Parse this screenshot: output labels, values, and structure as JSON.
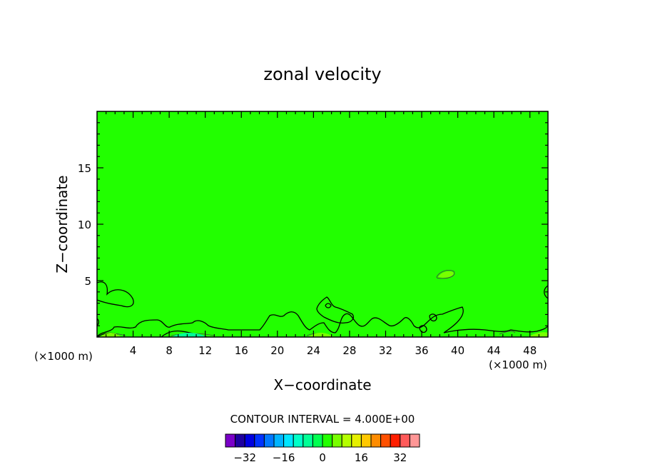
{
  "chart_data": {
    "type": "heatmap",
    "title": "zonal velocity",
    "xlabel": "X−coordinate",
    "ylabel": "Z−coordinate",
    "x_unit": "(×1000 m)",
    "x_unit_right": "(×1000 m)",
    "xlim": [
      0,
      50
    ],
    "ylim": [
      0,
      20
    ],
    "x_ticks": [
      4,
      8,
      12,
      16,
      20,
      24,
      28,
      32,
      36,
      40,
      44,
      48
    ],
    "y_ticks": [
      5,
      10,
      15
    ],
    "background_color": "#22ff00",
    "contour_interval_text": "CONTOUR INTERVAL = 4.000E+00",
    "colorbar": {
      "colors": [
        "#7a00c8",
        "#1e00a0",
        "#0000e0",
        "#0032ff",
        "#0078ff",
        "#00b4ff",
        "#00e6ff",
        "#00ffc8",
        "#00ff96",
        "#00ff50",
        "#22ff00",
        "#78ff00",
        "#b4ff00",
        "#e6f000",
        "#ffc800",
        "#ff8c00",
        "#ff5000",
        "#ff1e00",
        "#ff5a5a",
        "#ff9696"
      ],
      "tick_labels": [
        "−32",
        "−16",
        "0",
        "16",
        "32"
      ],
      "tick_values": [
        -32,
        -16,
        0,
        16,
        32
      ],
      "range": [
        -40,
        40
      ]
    }
  }
}
